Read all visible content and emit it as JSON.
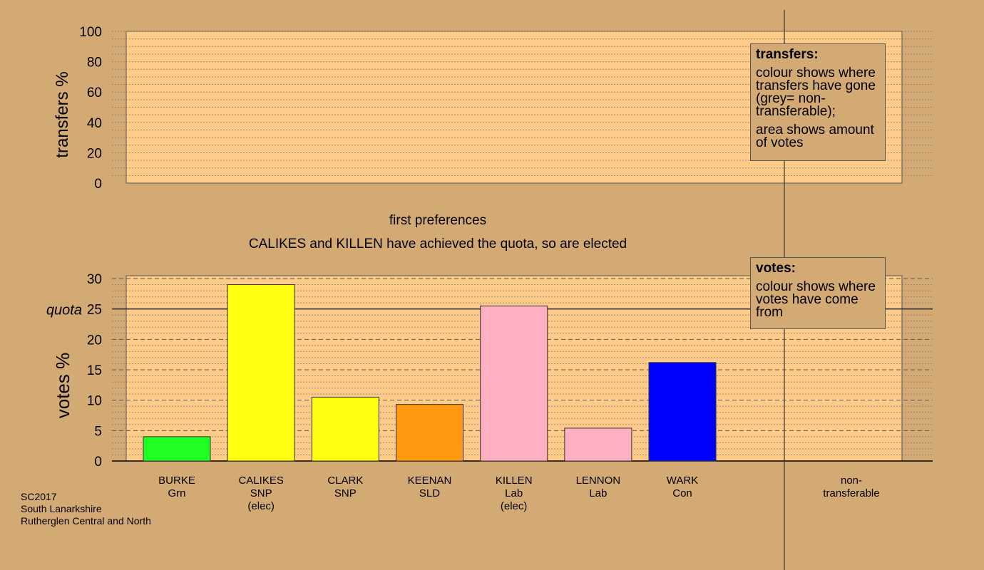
{
  "footer": {
    "line1": "SC2017",
    "line2": "South Lanarkshire",
    "line3": "Rutherglen Central and North"
  },
  "legend_transfers": {
    "title": "transfers:",
    "para1": "colour shows where transfers have gone (grey= non-transferable);",
    "para2": "area shows amount of votes"
  },
  "legend_votes": {
    "title": "votes:",
    "para1": "colour shows where votes have come from"
  },
  "chart_data": [
    {
      "type": "bar",
      "ylabel": "transfers %",
      "ylim": [
        0,
        100
      ],
      "yticks": [
        0,
        20,
        40,
        60,
        80,
        100
      ],
      "grid": true,
      "values": []
    },
    {
      "type": "bar",
      "title": "first preferences",
      "subtitle": "CALIKES and KILLEN have achieved the quota, so are elected",
      "ylabel": "votes %",
      "ylim": [
        0,
        30
      ],
      "yticks": [
        0,
        5,
        10,
        15,
        20,
        25,
        30
      ],
      "quota": 25,
      "quota_label": "quota",
      "grid": true,
      "categories": [
        {
          "name": "BURKE",
          "party": "Grn",
          "status": "",
          "value": 4.0,
          "color": "#22ff22"
        },
        {
          "name": "CALIKES",
          "party": "SNP",
          "status": "(elec)",
          "value": 29.0,
          "color": "#ffff11"
        },
        {
          "name": "CLARK",
          "party": "SNP",
          "status": "",
          "value": 10.5,
          "color": "#ffff11"
        },
        {
          "name": "KEENAN",
          "party": "SLD",
          "status": "",
          "value": 9.3,
          "color": "#ff9910"
        },
        {
          "name": "KILLEN",
          "party": "Lab",
          "status": "(elec)",
          "value": 25.5,
          "color": "#ffb0c0"
        },
        {
          "name": "LENNON",
          "party": "Lab",
          "status": "",
          "value": 5.4,
          "color": "#ffb0c0"
        },
        {
          "name": "WARK",
          "party": "Con",
          "status": "",
          "value": 16.2,
          "color": "#0000ff"
        }
      ],
      "nontransferable_label": [
        "non-",
        "transferable"
      ]
    }
  ]
}
